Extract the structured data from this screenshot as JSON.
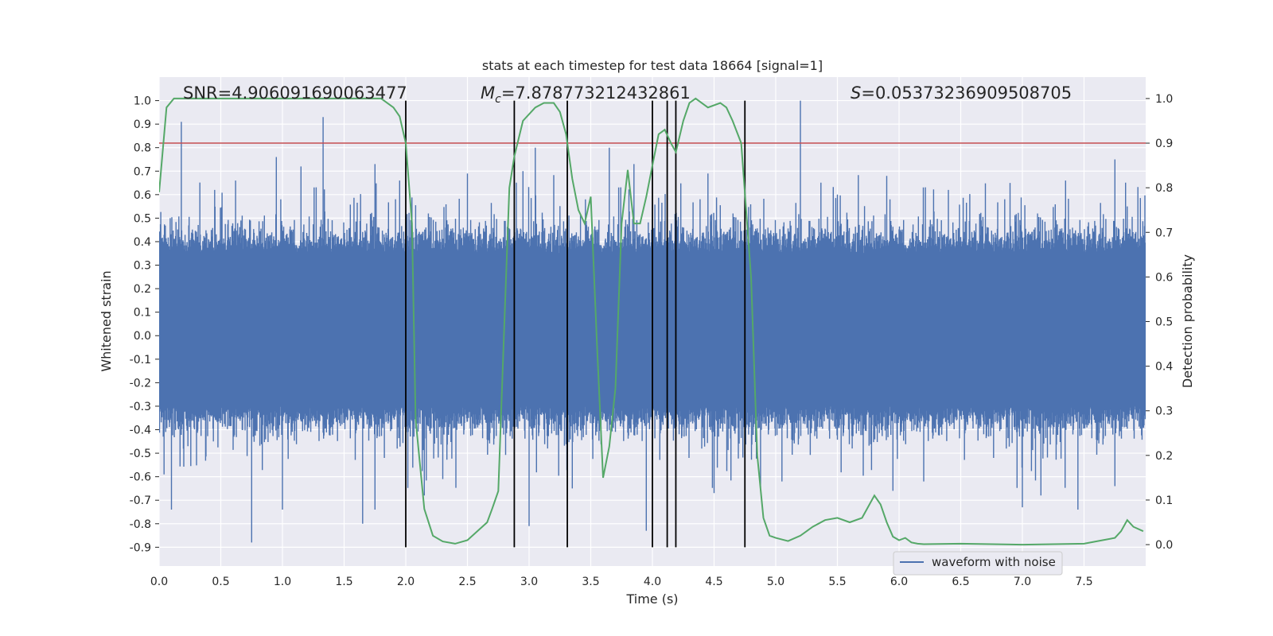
{
  "chart_data": {
    "type": "line",
    "title": "stats at each timestep for test data 18664 [signal=1]",
    "xlabel": "Time (s)",
    "ylabel": "Whitened strain",
    "y2label": "Detection probability",
    "xlim": [
      0.0,
      8.0
    ],
    "ylim": [
      -0.98,
      1.1
    ],
    "y2lim": [
      -0.048,
      1.048
    ],
    "x_ticks": [
      "0.0",
      "0.5",
      "1.0",
      "1.5",
      "2.0",
      "2.5",
      "3.0",
      "3.5",
      "4.0",
      "4.5",
      "5.0",
      "5.5",
      "6.0",
      "6.5",
      "7.0",
      "7.5"
    ],
    "y_ticks": [
      "1.0",
      "0.9",
      "0.8",
      "0.7",
      "0.6",
      "0.5",
      "0.4",
      "0.3",
      "0.2",
      "0.1",
      "0.0",
      "-0.1",
      "-0.2",
      "-0.3",
      "-0.4",
      "-0.5",
      "-0.6",
      "-0.7",
      "-0.8",
      "-0.9"
    ],
    "y2_ticks": [
      "1.0",
      "0.9",
      "0.8",
      "0.7",
      "0.6",
      "0.5",
      "0.4",
      "0.3",
      "0.2",
      "0.1",
      "0.0"
    ],
    "grid": true,
    "legend_placement": "lower-right",
    "background": "#eaeaf2",
    "threshold": {
      "value": 0.9,
      "color": "#c44e52"
    },
    "vertical_markers": {
      "x": [
        2.0,
        2.88,
        3.31,
        4.0,
        4.12,
        4.19,
        4.75
      ],
      "color": "#000000"
    },
    "annotations": [
      {
        "label": "SNR",
        "text": "SNR=4.906091690063477"
      },
      {
        "label": "Mc",
        "text": "=7.878773212432861"
      },
      {
        "label": "S",
        "text": "=0.05373236909508705"
      }
    ],
    "series": [
      {
        "name": "waveform with noise",
        "axis": "left",
        "color": "#4c72b0",
        "style": "dense-noise",
        "core_band": [
          -0.3,
          0.35
        ],
        "max_spikes": [
          [
            0.18,
            0.91
          ],
          [
            0.45,
            0.62
          ],
          [
            0.62,
            0.66
          ],
          [
            0.95,
            0.76
          ],
          [
            1.15,
            0.72
          ],
          [
            1.33,
            0.93
          ],
          [
            1.75,
            0.73
          ],
          [
            1.95,
            0.66
          ],
          [
            2.5,
            0.69
          ],
          [
            2.95,
            0.7
          ],
          [
            3.05,
            0.8
          ],
          [
            3.65,
            0.8
          ],
          [
            3.85,
            0.73
          ],
          [
            4.45,
            0.69
          ],
          [
            5.2,
            1.0
          ],
          [
            5.5,
            0.6
          ],
          [
            5.9,
            0.68
          ],
          [
            6.4,
            0.62
          ],
          [
            6.9,
            0.65
          ],
          [
            7.35,
            0.66
          ],
          [
            7.75,
            0.75
          ],
          [
            7.85,
            0.55
          ]
        ],
        "min_spikes": [
          [
            0.04,
            -0.59
          ],
          [
            0.1,
            -0.63
          ],
          [
            0.1,
            -0.74
          ],
          [
            0.75,
            -0.88
          ],
          [
            1.0,
            -0.74
          ],
          [
            1.65,
            -0.8
          ],
          [
            1.75,
            -0.74
          ],
          [
            2.15,
            -0.68
          ],
          [
            2.3,
            -0.61
          ],
          [
            3.0,
            -0.81
          ],
          [
            3.35,
            -0.65
          ],
          [
            3.95,
            -0.83
          ],
          [
            4.5,
            -0.67
          ],
          [
            5.05,
            -0.62
          ],
          [
            5.95,
            -0.66
          ],
          [
            6.2,
            -0.62
          ],
          [
            7.0,
            -0.73
          ],
          [
            7.15,
            -0.68
          ],
          [
            7.45,
            -0.74
          ],
          [
            7.75,
            -0.64
          ]
        ]
      },
      {
        "name": "",
        "axis": "right",
        "color": "#55a868",
        "x": [
          0.0,
          0.06,
          0.12,
          0.3,
          0.6,
          1.0,
          1.4,
          1.8,
          1.9,
          1.95,
          2.0,
          2.05,
          2.08,
          2.15,
          2.22,
          2.3,
          2.4,
          2.5,
          2.58,
          2.66,
          2.7,
          2.75,
          2.8,
          2.84,
          2.88,
          2.95,
          3.05,
          3.12,
          3.2,
          3.25,
          3.3,
          3.35,
          3.4,
          3.45,
          3.5,
          3.55,
          3.6,
          3.65,
          3.7,
          3.75,
          3.8,
          3.85,
          3.9,
          3.95,
          4.0,
          4.05,
          4.1,
          4.15,
          4.19,
          4.25,
          4.3,
          4.35,
          4.45,
          4.55,
          4.6,
          4.65,
          4.72,
          4.8,
          4.85,
          4.9,
          4.95,
          5.0,
          5.1,
          5.2,
          5.3,
          5.4,
          5.5,
          5.6,
          5.7,
          5.8,
          5.85,
          5.9,
          5.95,
          6.0,
          6.05,
          6.1,
          6.15,
          6.2,
          6.5,
          7.0,
          7.5,
          7.65,
          7.75,
          7.8,
          7.85,
          7.9,
          7.98
        ],
        "y": [
          0.79,
          0.98,
          1.0,
          1.0,
          1.0,
          1.0,
          1.0,
          1.0,
          0.98,
          0.96,
          0.9,
          0.72,
          0.28,
          0.08,
          0.02,
          0.007,
          0.002,
          0.01,
          0.03,
          0.05,
          0.08,
          0.12,
          0.5,
          0.8,
          0.87,
          0.95,
          0.98,
          0.99,
          0.99,
          0.97,
          0.92,
          0.82,
          0.75,
          0.72,
          0.78,
          0.45,
          0.15,
          0.22,
          0.35,
          0.72,
          0.84,
          0.72,
          0.72,
          0.78,
          0.85,
          0.92,
          0.93,
          0.9,
          0.88,
          0.95,
          0.99,
          1.0,
          0.98,
          0.99,
          0.98,
          0.95,
          0.9,
          0.6,
          0.2,
          0.06,
          0.02,
          0.015,
          0.008,
          0.02,
          0.04,
          0.055,
          0.06,
          0.05,
          0.06,
          0.11,
          0.09,
          0.05,
          0.018,
          0.01,
          0.015,
          0.005,
          0.002,
          0.001,
          0.002,
          0.0,
          0.002,
          0.01,
          0.015,
          0.03,
          0.055,
          0.04,
          0.03
        ]
      }
    ]
  }
}
